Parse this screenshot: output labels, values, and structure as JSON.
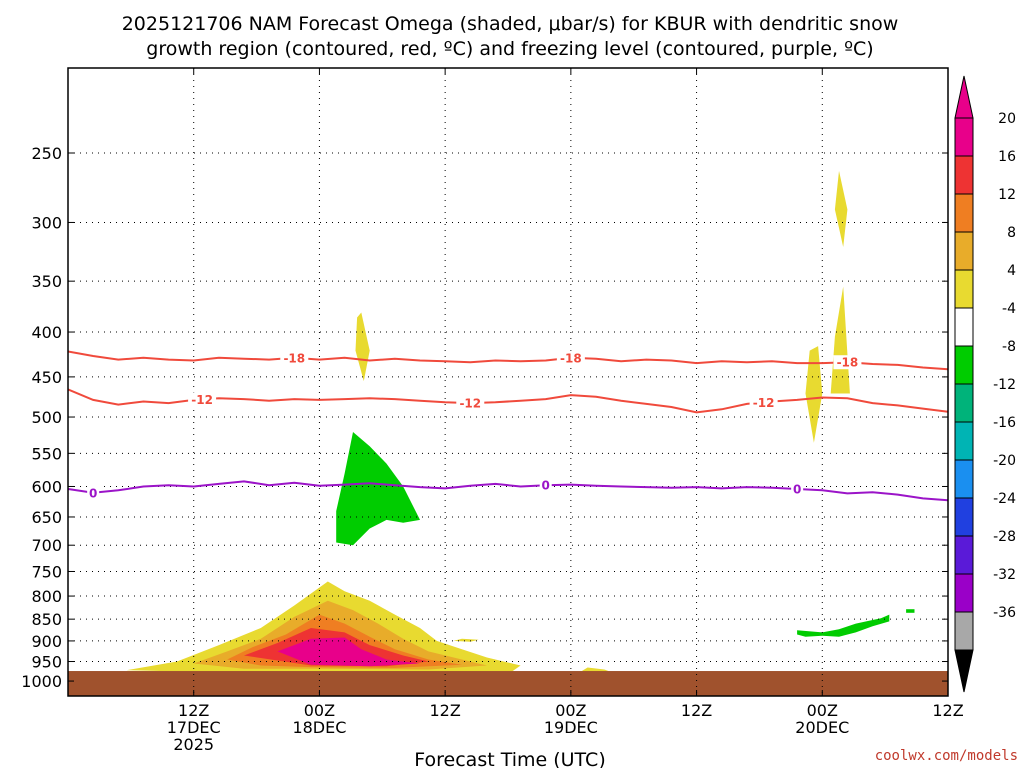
{
  "chart_data": {
    "type": "time-height cross section",
    "title_lines": [
      "2025121706 NAM Forecast Omega (shaded, μbar/s) for KBUR with dendritic snow",
      "growth region (contoured, red, ºC) and freezing level (contoured, purple, ºC)"
    ],
    "xlabel": "Forecast Time (UTC)",
    "ylabel": "",
    "credit": "coolwx.com/models",
    "x_range_hours": [
      -3,
      102
    ],
    "y_range_mb": [
      200,
      1040
    ],
    "x_ticks": [
      {
        "hour": 12,
        "lines": [
          "12Z",
          "17DEC",
          "2025"
        ]
      },
      {
        "hour": 27,
        "lines": [
          "00Z",
          "18DEC"
        ]
      },
      {
        "hour": 42,
        "lines": [
          "12Z"
        ]
      },
      {
        "hour": 57,
        "lines": [
          "00Z",
          "19DEC"
        ]
      },
      {
        "hour": 72,
        "lines": [
          "12Z"
        ]
      },
      {
        "hour": 87,
        "lines": [
          "00Z",
          "20DEC"
        ]
      },
      {
        "hour": 102,
        "lines": [
          "12Z"
        ]
      }
    ],
    "y_ticks": [
      250,
      300,
      350,
      400,
      450,
      500,
      550,
      600,
      650,
      700,
      750,
      800,
      850,
      900,
      950,
      1000
    ],
    "colorbar": {
      "labels": [
        "20",
        "16",
        "12",
        "8",
        "4",
        "-4",
        "-8",
        "-12",
        "-16",
        "-20",
        "-24",
        "-28",
        "-32",
        "-36"
      ],
      "bands_top_to_bottom": [
        "#e8008a",
        "#ee3333",
        "#ef7e22",
        "#e8ac2a",
        "#e8da30",
        "#ffffff",
        "#00cc00",
        "#00b37a",
        "#00b4b4",
        "#1a8ff0",
        "#2040e0",
        "#5a1ad8",
        "#9a00c8",
        "#a8a8a8"
      ],
      "top_arrow_color": "#e8008a",
      "bottom_arrow_color": "#000000"
    },
    "contours": [
      {
        "name": "dendritic -18C",
        "label": "-18",
        "color": "#f04a3c",
        "points": [
          [
            -3,
            421
          ],
          [
            0,
            426
          ],
          [
            3,
            430
          ],
          [
            6,
            428
          ],
          [
            9,
            430
          ],
          [
            12,
            431
          ],
          [
            15,
            428
          ],
          [
            18,
            429
          ],
          [
            21,
            430
          ],
          [
            24,
            428
          ],
          [
            27,
            430
          ],
          [
            30,
            428
          ],
          [
            33,
            431
          ],
          [
            36,
            429
          ],
          [
            39,
            431
          ],
          [
            42,
            432
          ],
          [
            45,
            433
          ],
          [
            48,
            431
          ],
          [
            51,
            432
          ],
          [
            54,
            431
          ],
          [
            57,
            428
          ],
          [
            60,
            429
          ],
          [
            63,
            432
          ],
          [
            66,
            430
          ],
          [
            69,
            431
          ],
          [
            72,
            434
          ],
          [
            75,
            432
          ],
          [
            78,
            433
          ],
          [
            81,
            432
          ],
          [
            84,
            434
          ],
          [
            87,
            434
          ],
          [
            90,
            433
          ],
          [
            93,
            435
          ],
          [
            96,
            436
          ],
          [
            99,
            439
          ],
          [
            102,
            441
          ]
        ],
        "label_hours": [
          24,
          57,
          90
        ]
      },
      {
        "name": "dendritic -12C",
        "label": "-12",
        "color": "#f04a3c",
        "points": [
          [
            -3,
            465
          ],
          [
            0,
            478
          ],
          [
            3,
            484
          ],
          [
            6,
            480
          ],
          [
            9,
            482
          ],
          [
            12,
            478
          ],
          [
            15,
            476
          ],
          [
            18,
            477
          ],
          [
            21,
            479
          ],
          [
            24,
            477
          ],
          [
            27,
            478
          ],
          [
            30,
            477
          ],
          [
            33,
            476
          ],
          [
            36,
            477
          ],
          [
            39,
            479
          ],
          [
            42,
            481
          ],
          [
            45,
            482
          ],
          [
            48,
            481
          ],
          [
            51,
            479
          ],
          [
            54,
            477
          ],
          [
            57,
            472
          ],
          [
            60,
            474
          ],
          [
            63,
            479
          ],
          [
            66,
            483
          ],
          [
            69,
            487
          ],
          [
            72,
            494
          ],
          [
            75,
            490
          ],
          [
            78,
            483
          ],
          [
            81,
            480
          ],
          [
            84,
            478
          ],
          [
            87,
            475
          ],
          [
            90,
            476
          ],
          [
            93,
            482
          ],
          [
            96,
            485
          ],
          [
            99,
            489
          ],
          [
            102,
            493
          ]
        ],
        "label_hours": [
          13,
          45,
          80
        ]
      },
      {
        "name": "freezing level 0C",
        "label": "0",
        "color": "#9b14c8",
        "points": [
          [
            -3,
            604
          ],
          [
            0,
            610
          ],
          [
            3,
            606
          ],
          [
            6,
            600
          ],
          [
            9,
            598
          ],
          [
            12,
            600
          ],
          [
            15,
            596
          ],
          [
            18,
            592
          ],
          [
            21,
            598
          ],
          [
            24,
            594
          ],
          [
            27,
            599
          ],
          [
            30,
            597
          ],
          [
            33,
            595
          ],
          [
            36,
            598
          ],
          [
            39,
            601
          ],
          [
            42,
            603
          ],
          [
            45,
            599
          ],
          [
            48,
            596
          ],
          [
            51,
            600
          ],
          [
            54,
            598
          ],
          [
            57,
            597
          ],
          [
            60,
            599
          ],
          [
            63,
            600
          ],
          [
            66,
            601
          ],
          [
            69,
            602
          ],
          [
            72,
            601
          ],
          [
            75,
            603
          ],
          [
            78,
            601
          ],
          [
            81,
            602
          ],
          [
            84,
            604
          ],
          [
            87,
            606
          ],
          [
            90,
            611
          ],
          [
            93,
            609
          ],
          [
            96,
            613
          ],
          [
            99,
            619
          ],
          [
            102,
            622
          ]
        ],
        "label_hours": [
          0,
          54,
          84
        ]
      }
    ],
    "omega_features": [
      {
        "name": "upper lift 19DEC-20DEC",
        "color": "#e8da30",
        "points": [
          [
            89,
            262
          ],
          [
            90,
            290
          ],
          [
            89.5,
            320
          ],
          [
            88.5,
            290
          ]
        ]
      },
      {
        "name": "upper lift 2",
        "color": "#e8da30",
        "points": [
          [
            89.5,
            355
          ],
          [
            90.3,
            470
          ],
          [
            88,
            470
          ],
          [
            88.5,
            405
          ]
        ]
      },
      {
        "name": "mid lift 20DEC",
        "color": "#e8da30",
        "points": [
          [
            86.5,
            415
          ],
          [
            87,
            470
          ],
          [
            86,
            535
          ],
          [
            85,
            470
          ],
          [
            85.5,
            420
          ]
        ]
      },
      {
        "name": "mid lift 18DEC",
        "color": "#e8da30",
        "points": [
          [
            32,
            380
          ],
          [
            33,
            420
          ],
          [
            32.3,
            455
          ],
          [
            31.3,
            420
          ],
          [
            31.5,
            385
          ]
        ]
      },
      {
        "name": "sinking 18DEC",
        "color": "#00cc00",
        "points": [
          [
            31,
            520
          ],
          [
            33,
            540
          ],
          [
            35,
            565
          ],
          [
            37,
            600
          ],
          [
            39,
            655
          ],
          [
            37,
            660
          ],
          [
            35,
            655
          ],
          [
            33,
            670
          ],
          [
            31,
            700
          ],
          [
            29,
            695
          ],
          [
            29,
            640
          ],
          [
            30,
            580
          ]
        ]
      },
      {
        "name": "low sinking 20DEC",
        "color": "#00cc00",
        "points": [
          [
            84,
            875
          ],
          [
            87,
            880
          ],
          [
            89,
            873
          ],
          [
            91,
            860
          ],
          [
            93,
            852
          ],
          [
            94,
            848
          ],
          [
            95,
            840
          ],
          [
            95,
            855
          ],
          [
            93,
            866
          ],
          [
            91,
            880
          ],
          [
            89,
            890
          ],
          [
            87,
            888
          ],
          [
            85,
            890
          ],
          [
            84,
            885
          ]
        ]
      },
      {
        "name": "low sinking spot",
        "color": "#00cc00",
        "points": [
          [
            97,
            828
          ],
          [
            98,
            828
          ],
          [
            98,
            836
          ],
          [
            97,
            836
          ]
        ]
      },
      {
        "name": "lift 4",
        "color": "#e8da30",
        "points": [
          [
            4,
            972
          ],
          [
            10,
            950
          ],
          [
            15,
            910
          ],
          [
            20,
            870
          ],
          [
            24,
            820
          ],
          [
            28,
            770
          ],
          [
            30,
            790
          ],
          [
            33,
            810
          ],
          [
            36,
            840
          ],
          [
            39,
            870
          ],
          [
            41,
            900
          ],
          [
            44,
            920
          ],
          [
            47,
            940
          ],
          [
            51,
            960
          ],
          [
            50,
            975
          ],
          [
            30,
            975
          ],
          [
            10,
            975
          ]
        ]
      },
      {
        "name": "lift 8",
        "color": "#e8ac2a",
        "points": [
          [
            12,
            955
          ],
          [
            16,
            925
          ],
          [
            20,
            895
          ],
          [
            24,
            845
          ],
          [
            28,
            810
          ],
          [
            31,
            830
          ],
          [
            34,
            860
          ],
          [
            37,
            895
          ],
          [
            40,
            925
          ],
          [
            44,
            945
          ],
          [
            47,
            960
          ],
          [
            40,
            970
          ],
          [
            28,
            968
          ],
          [
            18,
            968
          ]
        ]
      },
      {
        "name": "lift 12",
        "color": "#ef7e22",
        "points": [
          [
            16,
            945
          ],
          [
            19,
            915
          ],
          [
            23,
            885
          ],
          [
            27,
            840
          ],
          [
            30,
            860
          ],
          [
            33,
            890
          ],
          [
            36,
            920
          ],
          [
            40,
            945
          ],
          [
            44,
            958
          ],
          [
            36,
            966
          ],
          [
            26,
            964
          ],
          [
            20,
            960
          ]
        ]
      },
      {
        "name": "lift 16",
        "color": "#ee3333",
        "points": [
          [
            18,
            935
          ],
          [
            22,
            905
          ],
          [
            26,
            870
          ],
          [
            30,
            880
          ],
          [
            33,
            910
          ],
          [
            37,
            935
          ],
          [
            40,
            950
          ],
          [
            35,
            962
          ],
          [
            26,
            960
          ]
        ]
      },
      {
        "name": "lift 20",
        "color": "#e8008a",
        "points": [
          [
            22,
            925
          ],
          [
            26,
            895
          ],
          [
            30,
            892
          ],
          [
            32,
            920
          ],
          [
            35,
            945
          ],
          [
            39,
            955
          ],
          [
            33,
            962
          ],
          [
            26,
            958
          ]
        ]
      },
      {
        "name": "small lift 1",
        "color": "#e8da30",
        "points": [
          [
            44,
            895
          ],
          [
            46,
            897
          ],
          [
            45,
            902
          ],
          [
            43,
            900
          ]
        ]
      },
      {
        "name": "small lift 2",
        "color": "#e8da30",
        "points": [
          [
            59,
            965
          ],
          [
            61,
            970
          ],
          [
            62,
            978
          ],
          [
            58,
            978
          ]
        ]
      }
    ],
    "terrain": {
      "color": "#a0522d",
      "top_mb": 974
    }
  }
}
